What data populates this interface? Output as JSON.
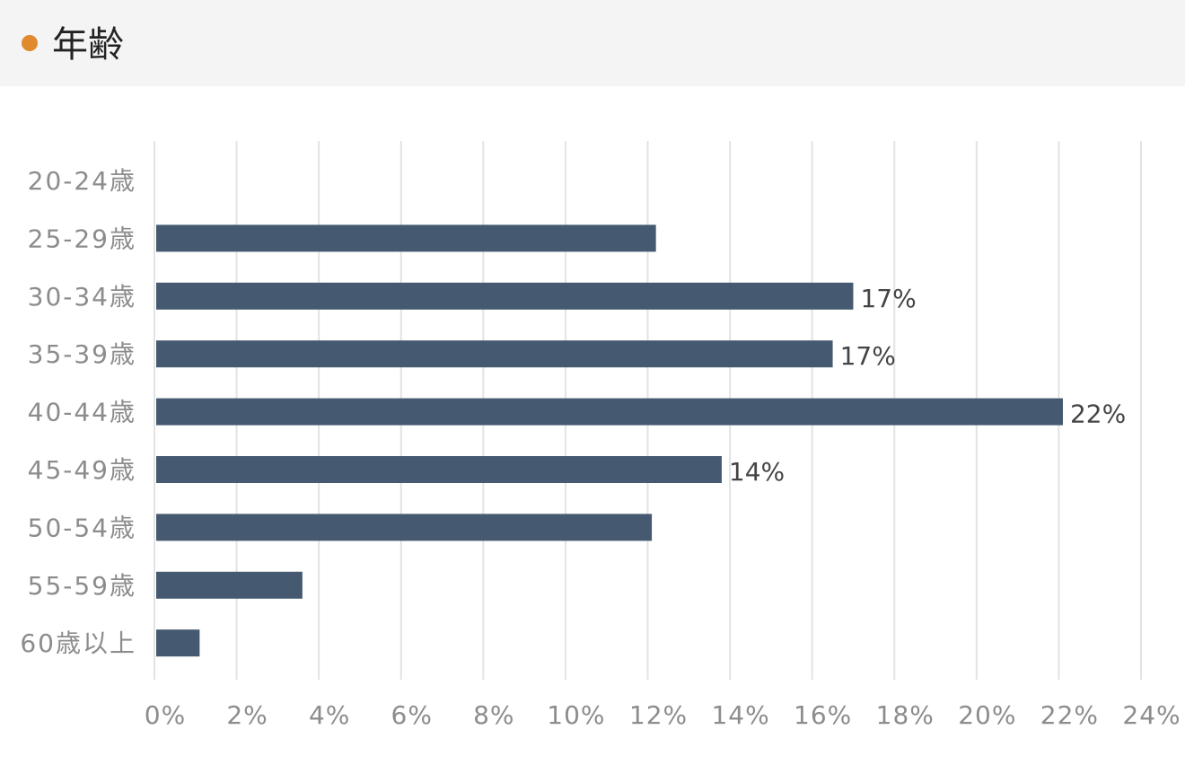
{
  "header": {
    "title": "年齢",
    "dot_color": "#e08a2e"
  },
  "chart_data": {
    "type": "bar",
    "orientation": "horizontal",
    "title": "年齢",
    "categories": [
      "20-24歳",
      "25-29歳",
      "30-34歳",
      "35-39歳",
      "40-44歳",
      "45-49歳",
      "50-54歳",
      "55-59歳",
      "60歳以上"
    ],
    "values": [
      0,
      12.2,
      17.0,
      16.5,
      22.1,
      13.8,
      12.1,
      3.6,
      1.1
    ],
    "data_labels": [
      "",
      "",
      "17%",
      "17%",
      "22%",
      "14%",
      "",
      "",
      ""
    ],
    "xlim": [
      0,
      24
    ],
    "x_ticks": [
      "0%",
      "2%",
      "4%",
      "6%",
      "8%",
      "10%",
      "12%",
      "14%",
      "16%",
      "18%",
      "20%",
      "22%",
      "24%"
    ],
    "xlabel": "",
    "ylabel": "",
    "grid": true,
    "bar_color": "#455a70",
    "grid_color": "#e3e3e3"
  }
}
